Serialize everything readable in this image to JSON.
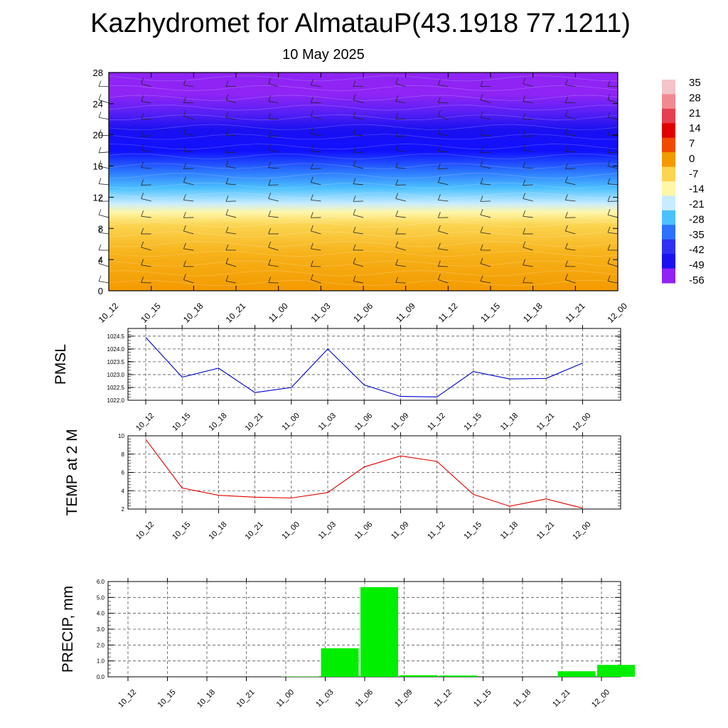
{
  "header": {
    "title": "Kazhydromet for AlmatauP(43.1918 77.1211)",
    "subtitle": "10 May 2025"
  },
  "chart_data": [
    {
      "type": "heatmap",
      "name": "temperature-profile",
      "x_ticks": [
        "10_12",
        "10_15",
        "10_18",
        "10_21",
        "11_00",
        "11_03",
        "11_06",
        "11_09",
        "11_12",
        "11_15",
        "11_18",
        "11_21",
        "12_00"
      ],
      "y_ticks": [
        "0",
        "4",
        "8",
        "12",
        "16",
        "20",
        "24",
        "28"
      ],
      "ylim": [
        0,
        28
      ],
      "colorbar_labels": [
        "35",
        "28",
        "21",
        "14",
        "7",
        "0",
        "-7",
        "-14",
        "-21",
        "-28",
        "-35",
        "-42",
        "-49",
        "-56"
      ],
      "colorbar_range": [
        -63,
        42
      ],
      "colors": {
        "warm": "#f39a00",
        "mild": "#fbd450",
        "pale": "#fff6a8",
        "cold": "#2a72ff",
        "colder": "#1010ff",
        "coldest": "#8f24f5"
      },
      "annotations": [
        "wind barbs"
      ]
    },
    {
      "type": "line",
      "name": "pmsl",
      "ylabel": "PMSL",
      "categories": [
        "10_12",
        "10_15",
        "10_18",
        "10_21",
        "11_00",
        "11_03",
        "11_06",
        "11_09",
        "11_12",
        "11_15",
        "11_18",
        "11_21",
        "12_00"
      ],
      "values": [
        1024.45,
        1022.9,
        1023.25,
        1022.3,
        1022.5,
        1024.0,
        1022.6,
        1022.15,
        1022.13,
        1023.12,
        1022.83,
        1022.85,
        1023.45
      ],
      "ylim": [
        1022.0,
        1024.8
      ],
      "y_ticks": [
        "1022.0",
        "1022.5",
        "1023.0",
        "1023.5",
        "1024.0",
        "1024.5"
      ],
      "color": "#0000cc",
      "grid": true
    },
    {
      "type": "line",
      "name": "temp",
      "ylabel": "TEMP at 2 M",
      "categories": [
        "10_12",
        "10_15",
        "10_18",
        "10_21",
        "11_00",
        "11_03",
        "11_06",
        "11_09",
        "11_12",
        "11_15",
        "11_18",
        "11_21",
        "12_00"
      ],
      "values": [
        9.6,
        4.3,
        3.5,
        3.3,
        3.2,
        3.8,
        6.6,
        7.8,
        7.2,
        3.6,
        2.3,
        3.1,
        2.1
      ],
      "ylim": [
        2,
        10
      ],
      "y_ticks": [
        "2",
        "4",
        "6",
        "8",
        "10"
      ],
      "color": "#e00000",
      "grid": true
    },
    {
      "type": "bar",
      "name": "precip",
      "ylabel": "PRECIP, mm",
      "categories": [
        "10_12",
        "10_15",
        "10_18",
        "10_21",
        "11_00",
        "11_03",
        "11_06",
        "11_09",
        "11_12",
        "11_15",
        "11_18",
        "11_21",
        "12_00"
      ],
      "values": [
        0,
        0,
        0,
        0,
        0.02,
        1.8,
        5.65,
        0.1,
        0.08,
        0,
        0,
        0.35,
        0.75
      ],
      "ylim": [
        0,
        6
      ],
      "y_ticks": [
        "0.0",
        "1.0",
        "2.0",
        "3.0",
        "4.0",
        "5.0",
        "6.0"
      ],
      "color": "#00ee00",
      "grid": true
    }
  ]
}
